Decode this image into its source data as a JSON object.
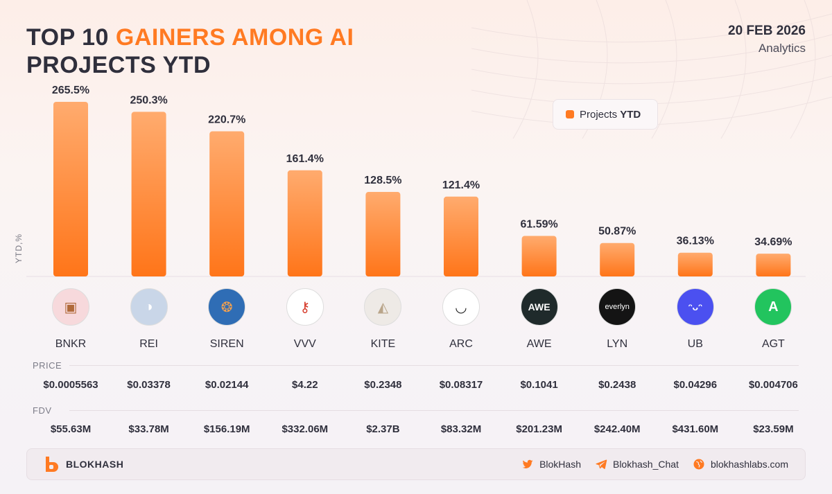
{
  "header": {
    "title_prefix": "TOP 10 ",
    "title_accent": "GAINERS AMONG AI",
    "title_line2": "PROJECTS YTD",
    "date": "20 FEB 2026",
    "subtitle": "Analytics"
  },
  "legend": {
    "label": "Projects",
    "label_bold": "YTD"
  },
  "colors": {
    "accent": "#ff7a22",
    "bar_top": "#ffab6e",
    "bar_bottom": "#ff7519"
  },
  "chart_data": {
    "type": "bar",
    "title": "TOP 10 GAINERS AMONG AI PROJECTS YTD",
    "ylabel": "YTD,%",
    "xlabel": "",
    "ylim": [
      0,
      265.5
    ],
    "grid": false,
    "legend_position": "top-right",
    "categories": [
      "BNKR",
      "REI",
      "SIREN",
      "VVV",
      "KITE",
      "ARC",
      "AWE",
      "LYN",
      "UB",
      "AGT"
    ],
    "series": [
      {
        "name": "Projects YTD",
        "values": [
          265.5,
          250.3,
          220.7,
          161.4,
          128.5,
          121.4,
          61.59,
          50.87,
          36.13,
          34.69
        ]
      }
    ],
    "value_labels": [
      "265.5%",
      "250.3%",
      "220.7%",
      "161.4%",
      "128.5%",
      "121.4%",
      "61.59%",
      "50.87%",
      "36.13%",
      "34.69%"
    ]
  },
  "projects": [
    {
      "symbol": "BNKR",
      "icon": "computer-robot-icon",
      "bg": "#f7d9dc",
      "fg": "#b06a3a",
      "glyph": "▣",
      "price": "$0.0005563",
      "fdv": "$55.63M"
    },
    {
      "symbol": "REI",
      "icon": "anime-character-icon",
      "bg": "#c9d6e8",
      "fg": "#ffffff",
      "glyph": "◑",
      "price": "$0.03378",
      "fdv": "$33.78M"
    },
    {
      "symbol": "SIREN",
      "icon": "siren-character-icon",
      "bg": "#2f6db5",
      "fg": "#f0a050",
      "glyph": "❂",
      "price": "$0.02144",
      "fdv": "$156.19M"
    },
    {
      "symbol": "VVV",
      "icon": "crossed-keys-icon",
      "bg": "#ffffff",
      "fg": "#d63a2a",
      "glyph": "⚷",
      "price": "$4.22",
      "fdv": "$332.06M"
    },
    {
      "symbol": "KITE",
      "icon": "kite-triangle-icon",
      "bg": "#eeeae6",
      "fg": "#b9a58a",
      "glyph": "◭",
      "price": "$0.2348",
      "fdv": "$2.37B"
    },
    {
      "symbol": "ARC",
      "icon": "smile-arc-icon",
      "bg": "#ffffff",
      "fg": "#222222",
      "glyph": "◡",
      "price": "$0.08317",
      "fdv": "$83.32M"
    },
    {
      "symbol": "AWE",
      "icon": "awe-logo-icon",
      "bg": "#1f2a2b",
      "fg": "#ffffff",
      "glyph": "AWE",
      "price": "$0.1041",
      "fdv": "$201.23M"
    },
    {
      "symbol": "LYN",
      "icon": "everlyn-logo-icon",
      "bg": "#141414",
      "fg": "#ffffff",
      "glyph": "everlyn",
      "price": "$0.2438",
      "fdv": "$242.40M"
    },
    {
      "symbol": "UB",
      "icon": "smiley-face-icon",
      "bg": "#4b50f0",
      "fg": "#ffffff",
      "glyph": "ᵔᴗᵔ",
      "price": "$0.04296",
      "fdv": "$431.60M"
    },
    {
      "symbol": "AGT",
      "icon": "a-logo-icon",
      "bg": "#22c45e",
      "fg": "#ffffff",
      "glyph": "A",
      "price": "$0.004706",
      "fdv": "$23.59M"
    }
  ],
  "rows": {
    "price_label": "PRICE",
    "fdv_label": "FDV"
  },
  "footer": {
    "brand": "BLOKHASH",
    "twitter": "BlokHash",
    "telegram": "Blokhash_Chat",
    "website": "blokhashlabs.com"
  }
}
